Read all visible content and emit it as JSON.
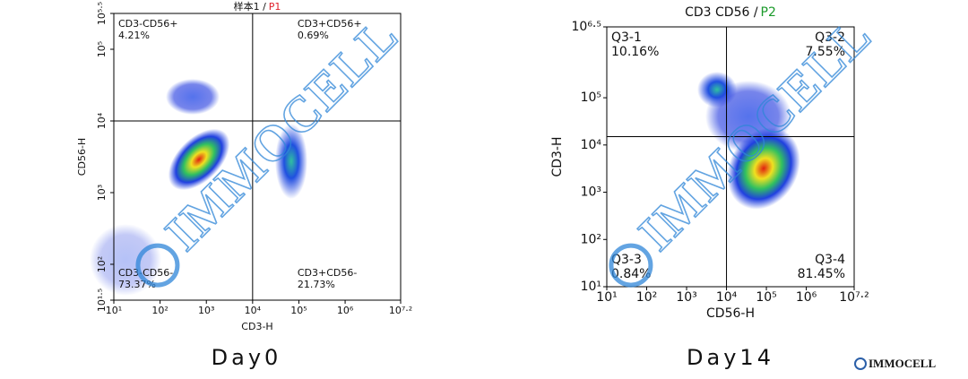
{
  "chart_data": [
    {
      "type": "scatter",
      "title": "样本1 /",
      "title_gate": "P1",
      "title_gate_color": "#e0202a",
      "x_label": "CD3-H",
      "y_label": "CD56-H",
      "log_scale": true,
      "xlim": [
        10,
        15848932
      ],
      "ylim": [
        31.6,
        316228
      ],
      "xticks": [
        {
          "value": 10,
          "label": "10¹"
        },
        {
          "value": 100,
          "label": "10²"
        },
        {
          "value": 1000,
          "label": "10³"
        },
        {
          "value": 10000,
          "label": "10⁴"
        },
        {
          "value": 100000,
          "label": "10⁵"
        },
        {
          "value": 1000000,
          "label": "10⁶"
        },
        {
          "value": 15848932,
          "label": "10⁷·²"
        }
      ],
      "yticks": [
        {
          "value": 31.6,
          "label": "10¹·⁵"
        },
        {
          "value": 100,
          "label": "10²"
        },
        {
          "value": 1000,
          "label": "10³"
        },
        {
          "value": 10000,
          "label": "10⁴"
        },
        {
          "value": 100000,
          "label": "10⁵"
        },
        {
          "value": 316228,
          "label": "10⁵·⁵"
        }
      ],
      "gate": {
        "x": 10000,
        "y": 10000
      },
      "quadrants": [
        {
          "name": "CD3-CD56+",
          "value": 4.21,
          "value_label": "4.21%",
          "corner": "top-left"
        },
        {
          "name": "CD3+CD56+",
          "value": 0.69,
          "value_label": "0.69%",
          "corner": "top-right"
        },
        {
          "name": "CD3-CD56-",
          "value": 73.37,
          "value_label": "73.37%",
          "corner": "bottom-left"
        },
        {
          "name": "CD3+CD56-",
          "value": 21.73,
          "value_label": "21.73%",
          "corner": "bottom-right"
        }
      ],
      "caption": "Day0"
    },
    {
      "type": "scatter",
      "title": "CD3 CD56 /",
      "title_gate": "P2",
      "title_gate_color": "#1a9a2a",
      "x_label": "CD56-H",
      "y_label": "CD3-H",
      "log_scale": true,
      "xlim": [
        10,
        15848932
      ],
      "ylim": [
        10,
        3162278
      ],
      "xticks": [
        {
          "value": 10,
          "label": "10¹"
        },
        {
          "value": 100,
          "label": "10²"
        },
        {
          "value": 1000,
          "label": "10³"
        },
        {
          "value": 10000,
          "label": "10⁴"
        },
        {
          "value": 100000,
          "label": "10⁵"
        },
        {
          "value": 1000000,
          "label": "10⁶"
        },
        {
          "value": 15848932,
          "label": "10⁷·²"
        }
      ],
      "yticks": [
        {
          "value": 10,
          "label": "10¹"
        },
        {
          "value": 100,
          "label": "10²"
        },
        {
          "value": 1000,
          "label": "10³"
        },
        {
          "value": 10000,
          "label": "10⁴"
        },
        {
          "value": 100000,
          "label": "10⁵"
        },
        {
          "value": 3162278,
          "label": "10⁶·⁵"
        }
      ],
      "gate": {
        "x": 10000,
        "y": 15000
      },
      "quadrants": [
        {
          "name": "Q3-1",
          "value": 10.16,
          "value_label": "10.16%",
          "corner": "top-left"
        },
        {
          "name": "Q3-2",
          "value": 7.55,
          "value_label": "7.55%",
          "corner": "top-right"
        },
        {
          "name": "Q3-3",
          "value": 0.84,
          "value_label": "0.84%",
          "corner": "bottom-left"
        },
        {
          "name": "Q3-4",
          "value": 81.45,
          "value_label": "81.45%",
          "corner": "bottom-right"
        }
      ],
      "caption": "Day14"
    }
  ],
  "watermark": "IMMOCELL",
  "logo": "IMMOCELL"
}
